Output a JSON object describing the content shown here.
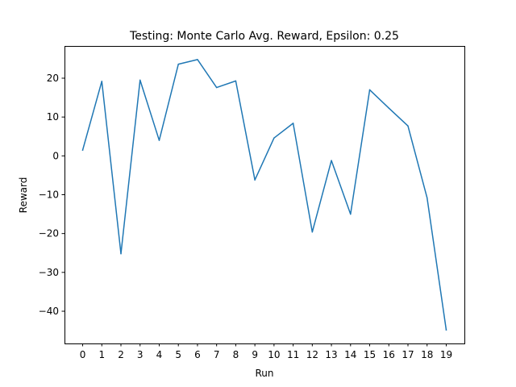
{
  "chart_data": {
    "type": "line",
    "title": "Testing: Monte Carlo Avg. Reward, Epsilon: 0.25",
    "xlabel": "Run",
    "ylabel": "Reward",
    "x": [
      0,
      1,
      2,
      3,
      4,
      5,
      6,
      7,
      8,
      9,
      10,
      11,
      12,
      13,
      14,
      15,
      16,
      17,
      18,
      19
    ],
    "series": [
      {
        "values": [
          1.5,
          19.2,
          -25.2,
          19.5,
          4.0,
          23.6,
          24.8,
          17.6,
          19.3,
          -6.2,
          4.6,
          8.4,
          -19.6,
          -1.2,
          -15.0,
          17.0,
          12.3,
          7.7,
          -10.8,
          -44.8
        ],
        "color": "#1f77b4"
      }
    ],
    "xticks": [
      "0",
      "1",
      "2",
      "3",
      "4",
      "5",
      "6",
      "7",
      "8",
      "9",
      "10",
      "11",
      "12",
      "13",
      "14",
      "15",
      "16",
      "17",
      "18",
      "19"
    ],
    "yticks": [
      {
        "value": 20,
        "label": "20"
      },
      {
        "value": 10,
        "label": "10"
      },
      {
        "value": 0,
        "label": "0"
      },
      {
        "value": -10,
        "label": "−10"
      },
      {
        "value": -20,
        "label": "−20"
      },
      {
        "value": -30,
        "label": "−30"
      },
      {
        "value": -40,
        "label": "−40"
      }
    ],
    "xlim": [
      -0.95,
      19.95
    ],
    "ylim": [
      -48.3,
      28.3
    ],
    "grid": false,
    "legend": "none"
  }
}
